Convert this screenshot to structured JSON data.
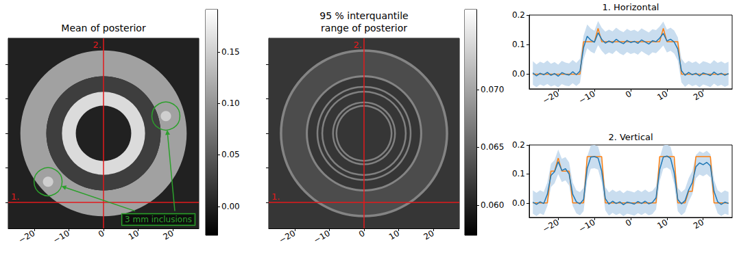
{
  "chart_data": [
    {
      "type": "image",
      "title": "Mean of posterior",
      "xlim": [
        -27.5,
        27.5
      ],
      "ylim": [
        -27.5,
        27.5
      ],
      "xticks": [
        {
          "value": -20,
          "label": "−20"
        },
        {
          "value": -10,
          "label": "−10"
        },
        0,
        10,
        20
      ],
      "yticks": [
        -20,
        -10,
        0,
        10,
        20
      ],
      "tick_labels": "x",
      "center": [
        0,
        0
      ],
      "background": 0.0,
      "rings": [
        {
          "r": [
            16.5,
            24
          ],
          "value": 0.11
        },
        {
          "r": [
            12,
            16.5
          ],
          "value": 0.025
        },
        {
          "r": [
            8,
            12
          ],
          "value": 0.16
        }
      ],
      "inclusions": [
        {
          "x": -16,
          "y": -14,
          "r": 1.5,
          "value": 0.15
        },
        {
          "x": 18,
          "y": 5,
          "r": 1.5,
          "value": 0.15
        }
      ],
      "profiles": {
        "color": "#e31a1c",
        "lines": [
          {
            "label": "1.",
            "y": -20
          },
          {
            "label": "2.",
            "x": 0
          }
        ]
      },
      "annotation": {
        "text": "3 mm inclusions",
        "color": "#2ca02c"
      },
      "colorbar": {
        "range": [
          -0.028,
          0.191
        ],
        "ticks": [
          {
            "value": 0,
            "label": "0.00"
          },
          {
            "value": 0.05,
            "label": "0.05"
          },
          {
            "value": 0.1,
            "label": "0.10"
          },
          {
            "value": 0.15,
            "label": "0.15"
          }
        ]
      }
    },
    {
      "type": "image",
      "title": "95 % interquantile range of posterior",
      "xlim": [
        -27.5,
        27.5
      ],
      "ylim": [
        -27.5,
        27.5
      ],
      "xticks": [
        {
          "value": -20,
          "label": "−20"
        },
        {
          "value": -10,
          "label": "−10"
        },
        0,
        10,
        20
      ],
      "yticks": [
        -20,
        -10,
        0,
        10,
        20
      ],
      "tick_labels": "x",
      "center": [
        0,
        0
      ],
      "background": 0.0615,
      "rings": [
        {
          "r": [
            16.5,
            24
          ],
          "value": 0.0632
        },
        {
          "r": [
            23.6,
            24.3
          ],
          "value": 0.0675
        },
        {
          "r": [
            16.2,
            16.8
          ],
          "value": 0.0675
        },
        {
          "r": [
            13.2,
            13.7
          ],
          "value": 0.0672
        },
        {
          "r": [
            11.8,
            12.3
          ],
          "value": 0.0672
        },
        {
          "r": [
            8.7,
            9.2
          ],
          "value": 0.0672
        },
        {
          "r": [
            7.7,
            8.2
          ],
          "value": 0.0672
        }
      ],
      "profiles": {
        "color": "#e31a1c",
        "lines": [
          {
            "label": "1.",
            "y": -20
          },
          {
            "label": "2.",
            "x": 0
          }
        ]
      },
      "colorbar": {
        "range": [
          0.0574,
          0.0769
        ],
        "ticks": [
          {
            "value": 0.06,
            "label": "0.060"
          },
          {
            "value": 0.065,
            "label": "0.065"
          },
          {
            "value": 0.07,
            "label": "0.070"
          }
        ]
      }
    },
    {
      "type": "line",
      "title": "1. Horizontal",
      "xlim": [
        -28,
        28
      ],
      "ylim": [
        -0.05,
        0.2
      ],
      "xticks": [
        {
          "value": -20,
          "label": "−20"
        },
        {
          "value": -10,
          "label": "−10"
        },
        0,
        10,
        20
      ],
      "yticks": [
        {
          "value": 0,
          "label": "0.0"
        },
        0.1,
        0.2
      ],
      "x": [
        -27,
        -26,
        -25,
        -24,
        -23,
        -22,
        -21,
        -20,
        -19,
        -18,
        -17,
        -16,
        -15,
        -14,
        -13,
        -12,
        -11,
        -10,
        -9,
        -8,
        -7,
        -6,
        -5,
        -4,
        -3,
        -2,
        -1,
        0,
        1,
        2,
        3,
        4,
        5,
        6,
        7,
        8,
        9,
        10,
        11,
        12,
        13,
        14,
        15,
        16,
        17,
        18,
        19,
        20,
        21,
        22,
        23,
        24,
        25,
        26,
        27
      ],
      "band": {
        "color": "#c9ddef",
        "lower": [
          -0.036,
          -0.044,
          -0.035,
          -0.04,
          -0.033,
          -0.042,
          -0.037,
          -0.045,
          -0.034,
          -0.039,
          -0.041,
          -0.031,
          -0.04,
          -0.03,
          0.05,
          0.088,
          0.076,
          0.07,
          0.098,
          0.079,
          0.066,
          0.073,
          0.068,
          0.08,
          0.07,
          0.064,
          0.075,
          0.068,
          0.072,
          0.066,
          0.078,
          0.07,
          0.063,
          0.074,
          0.071,
          0.083,
          0.097,
          0.073,
          0.079,
          0.07,
          0.046,
          -0.028,
          -0.043,
          -0.033,
          -0.041,
          -0.036,
          -0.045,
          -0.035,
          -0.039,
          -0.044,
          -0.032,
          -0.041,
          -0.036,
          -0.043,
          -0.037
        ],
        "upper": [
          0.044,
          0.033,
          0.042,
          0.037,
          0.046,
          0.035,
          0.041,
          0.032,
          0.045,
          0.039,
          0.036,
          0.048,
          0.038,
          0.052,
          0.13,
          0.168,
          0.154,
          0.147,
          0.18,
          0.157,
          0.144,
          0.151,
          0.145,
          0.157,
          0.148,
          0.142,
          0.153,
          0.146,
          0.15,
          0.143,
          0.155,
          0.148,
          0.141,
          0.152,
          0.149,
          0.161,
          0.178,
          0.151,
          0.157,
          0.148,
          0.125,
          0.053,
          0.036,
          0.045,
          0.038,
          0.043,
          0.034,
          0.044,
          0.04,
          0.035,
          0.047,
          0.038,
          0.043,
          0.036,
          0.042
        ]
      },
      "series": [
        {
          "color": "#ff7f0e",
          "values": [
            0,
            0,
            0,
            0,
            0,
            0,
            0,
            0,
            0,
            0,
            0,
            0,
            0,
            0,
            0.11,
            0.11,
            0.11,
            0.11,
            0.155,
            0.11,
            0.11,
            0.11,
            0.11,
            0.11,
            0.11,
            0.11,
            0.11,
            0.11,
            0.11,
            0.11,
            0.11,
            0.11,
            0.11,
            0.11,
            0.11,
            0.11,
            0.155,
            0.11,
            0.11,
            0.11,
            0.11,
            0,
            0,
            0,
            0,
            0,
            0,
            0,
            0,
            0,
            0,
            0,
            0,
            0,
            0
          ]
        },
        {
          "color": "#1f77b4",
          "values": [
            0.004,
            -0.006,
            0.003,
            -0.002,
            0.006,
            -0.004,
            0.002,
            -0.007,
            0.005,
            0.0,
            -0.003,
            0.008,
            -0.002,
            0.01,
            0.09,
            0.128,
            0.115,
            0.108,
            0.14,
            0.118,
            0.105,
            0.112,
            0.106,
            0.118,
            0.109,
            0.103,
            0.114,
            0.107,
            0.111,
            0.104,
            0.116,
            0.109,
            0.102,
            0.113,
            0.11,
            0.122,
            0.138,
            0.112,
            0.118,
            0.109,
            0.085,
            0.012,
            -0.004,
            0.006,
            -0.002,
            0.003,
            -0.006,
            0.004,
            0.0,
            -0.005,
            0.007,
            -0.002,
            0.003,
            -0.004,
            0.002
          ]
        }
      ]
    },
    {
      "type": "line",
      "title": "2. Vertical",
      "xlim": [
        -28,
        28
      ],
      "ylim": [
        -0.05,
        0.2
      ],
      "xticks": [
        {
          "value": -20,
          "label": "−20"
        },
        {
          "value": -10,
          "label": "−10"
        },
        0,
        10,
        20
      ],
      "yticks": [
        {
          "value": 0,
          "label": "0.0"
        },
        0.1,
        0.2
      ],
      "x": [
        -27,
        -26,
        -25,
        -24,
        -23,
        -22,
        -21,
        -20,
        -19,
        -18,
        -17,
        -16,
        -15,
        -14,
        -13,
        -12,
        -11,
        -10,
        -9,
        -8,
        -7,
        -6,
        -5,
        -4,
        -3,
        -2,
        -1,
        0,
        1,
        2,
        3,
        4,
        5,
        6,
        7,
        8,
        9,
        10,
        11,
        12,
        13,
        14,
        15,
        16,
        17,
        18,
        19,
        20,
        21,
        22,
        23,
        24,
        25,
        26,
        27
      ],
      "band": {
        "color": "#c9ddef",
        "lower": [
          -0.037,
          -0.045,
          -0.036,
          -0.042,
          -0.01,
          0.055,
          0.068,
          0.1,
          0.072,
          0.078,
          0.06,
          -0.01,
          -0.036,
          -0.043,
          -0.028,
          0.08,
          0.118,
          0.12,
          0.115,
          0.07,
          -0.025,
          -0.044,
          -0.034,
          -0.042,
          -0.036,
          -0.046,
          -0.037,
          -0.04,
          -0.044,
          -0.035,
          -0.042,
          -0.034,
          -0.043,
          -0.038,
          -0.022,
          0.075,
          0.118,
          0.122,
          0.114,
          0.065,
          -0.028,
          -0.043,
          -0.032,
          0.005,
          0.03,
          0.085,
          0.098,
          0.092,
          0.1,
          0.088,
          0.0,
          -0.036,
          -0.045,
          -0.037,
          -0.042
        ],
        "upper": [
          0.043,
          0.035,
          0.044,
          0.038,
          0.07,
          0.135,
          0.148,
          0.184,
          0.152,
          0.158,
          0.14,
          0.07,
          0.044,
          0.037,
          0.052,
          0.16,
          0.198,
          0.2,
          0.195,
          0.15,
          0.055,
          0.036,
          0.046,
          0.038,
          0.044,
          0.034,
          0.043,
          0.04,
          0.036,
          0.045,
          0.038,
          0.046,
          0.037,
          0.042,
          0.058,
          0.155,
          0.198,
          0.202,
          0.194,
          0.145,
          0.052,
          0.037,
          0.048,
          0.085,
          0.11,
          0.165,
          0.178,
          0.172,
          0.18,
          0.168,
          0.08,
          0.044,
          0.035,
          0.043,
          0.038
        ]
      },
      "series": [
        {
          "color": "#ff7f0e",
          "values": [
            0,
            0,
            0,
            0,
            0,
            0.11,
            0.11,
            0.155,
            0.11,
            0.11,
            0.11,
            0,
            0,
            0,
            0,
            0.16,
            0.16,
            0.16,
            0.16,
            0.16,
            0,
            0,
            0,
            0,
            0,
            0,
            0,
            0,
            0,
            0,
            0,
            0,
            0,
            0,
            0,
            0.16,
            0.16,
            0.16,
            0.16,
            0.16,
            0,
            0,
            0,
            0.04,
            0.04,
            0.16,
            0.16,
            0.16,
            0.16,
            0.16,
            0,
            0,
            0,
            0,
            0
          ]
        },
        {
          "color": "#1f77b4",
          "values": [
            0.003,
            -0.005,
            0.004,
            -0.002,
            0.03,
            0.095,
            0.108,
            0.142,
            0.112,
            0.118,
            0.1,
            0.03,
            0.004,
            -0.003,
            0.012,
            0.12,
            0.158,
            0.16,
            0.155,
            0.11,
            0.015,
            -0.004,
            0.006,
            -0.002,
            0.004,
            -0.006,
            0.003,
            0.0,
            -0.004,
            0.005,
            -0.002,
            0.006,
            -0.003,
            0.002,
            0.018,
            0.115,
            0.158,
            0.162,
            0.154,
            0.105,
            0.012,
            -0.003,
            0.008,
            0.045,
            0.07,
            0.125,
            0.138,
            0.132,
            0.14,
            0.128,
            0.04,
            0.004,
            -0.005,
            0.003,
            -0.002
          ]
        }
      ]
    }
  ]
}
